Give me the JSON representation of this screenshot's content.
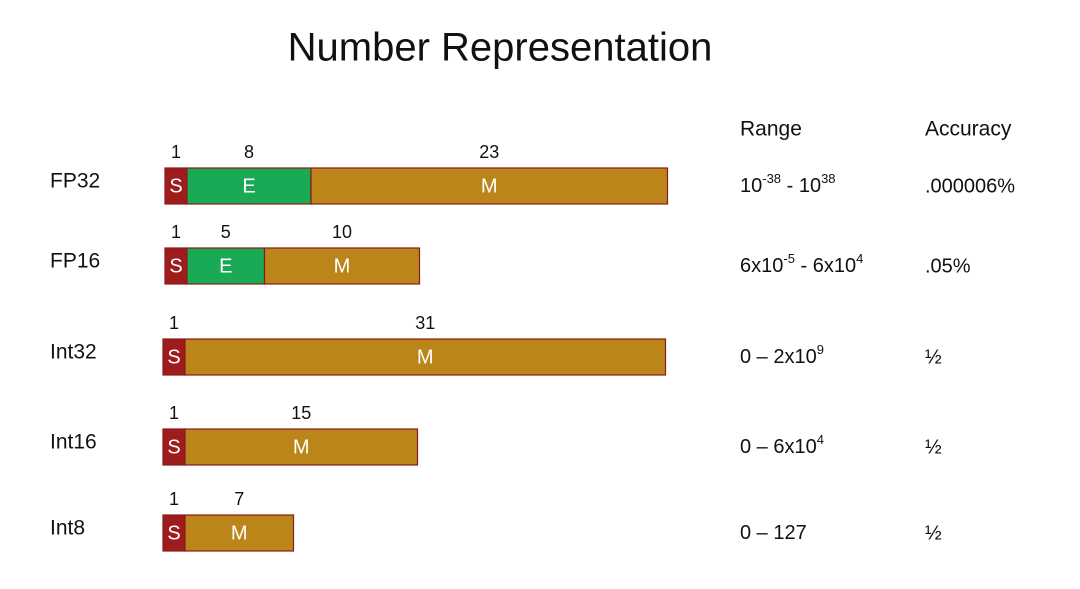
{
  "title": "Number Representation",
  "headers": {
    "range": "Range",
    "accuracy": "Accuracy"
  },
  "rows": [
    {
      "label": "FP32",
      "fields": [
        {
          "letter": "S",
          "bits": 1
        },
        {
          "letter": "E",
          "bits": 8
        },
        {
          "letter": "M",
          "bits": 23
        }
      ],
      "range": [
        "10",
        "-38",
        " - 10",
        "38"
      ],
      "accuracy": ".000006%"
    },
    {
      "label": "FP16",
      "fields": [
        {
          "letter": "S",
          "bits": 1
        },
        {
          "letter": "E",
          "bits": 5
        },
        {
          "letter": "M",
          "bits": 10
        }
      ],
      "range": [
        "6x10",
        "-5",
        " - 6x10",
        "4"
      ],
      "accuracy": ".05%"
    },
    {
      "label": "Int32",
      "fields": [
        {
          "letter": "S",
          "bits": 1
        },
        {
          "letter": "M",
          "bits": 31
        }
      ],
      "range": [
        "0 – 2x10",
        "9"
      ],
      "accuracy": "½"
    },
    {
      "label": "Int16",
      "fields": [
        {
          "letter": "S",
          "bits": 1
        },
        {
          "letter": "M",
          "bits": 15
        }
      ],
      "range": [
        "0 – 6x10",
        "4"
      ],
      "accuracy": "½"
    },
    {
      "label": "Int8",
      "fields": [
        {
          "letter": "S",
          "bits": 1
        },
        {
          "letter": "M",
          "bits": 7
        }
      ],
      "range": [
        "0 – 127"
      ],
      "accuracy": "½"
    }
  ]
}
